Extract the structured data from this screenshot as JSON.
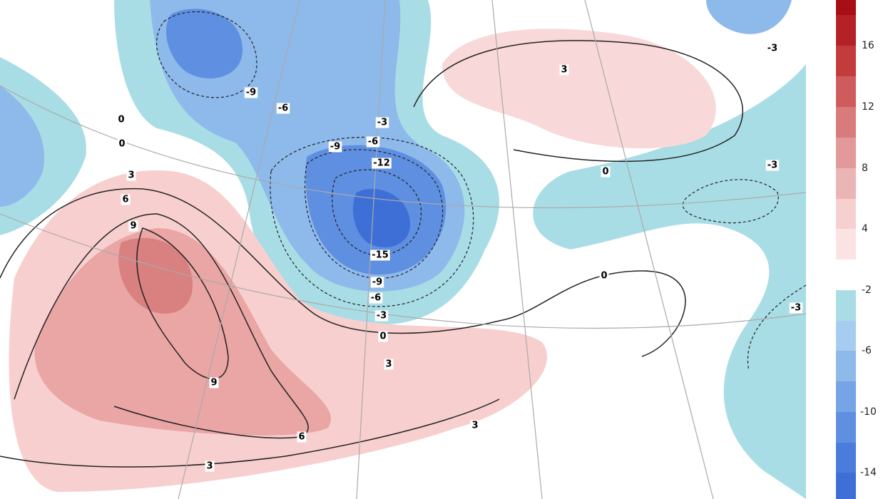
{
  "contour_labels": [
    -9,
    -6,
    -3,
    -6,
    -9,
    -12,
    -15,
    -9,
    -6,
    -3,
    0,
    3,
    9,
    6,
    3,
    3,
    0,
    0,
    3,
    -3,
    -3,
    -3,
    3,
    6,
    9,
    0,
    0
  ],
  "colorbar": {
    "labels": [
      16,
      12,
      8,
      4,
      -2,
      -6,
      -10,
      -14
    ]
  }
}
